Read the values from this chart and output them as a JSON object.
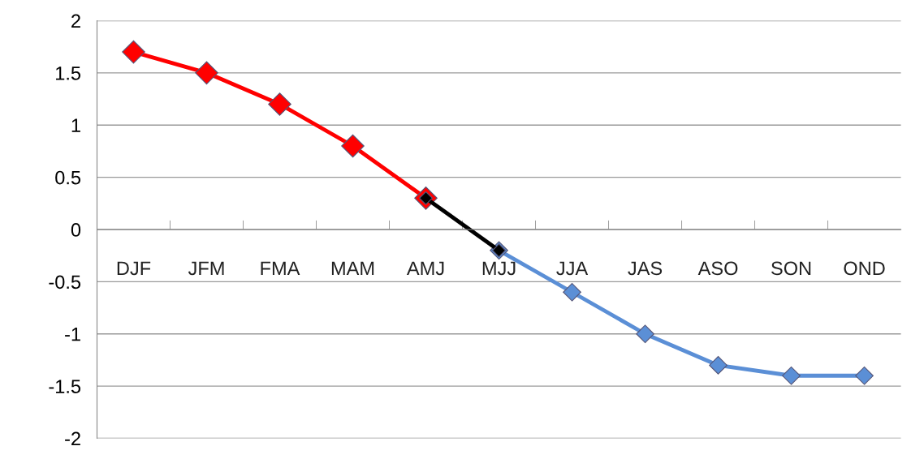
{
  "chart_data": {
    "type": "line",
    "categories": [
      "DJF",
      "JFM",
      "FMA",
      "MAM",
      "AMJ",
      "MJJ",
      "JJA",
      "JAS",
      "ASO",
      "SON",
      "OND"
    ],
    "series": [
      {
        "color": "#ff0000",
        "values": [
          1.7,
          1.5,
          1.2,
          0.8,
          0.3,
          null,
          null,
          null,
          null,
          null,
          null
        ]
      },
      {
        "color": "#5b8fd6",
        "values": [
          null,
          null,
          null,
          null,
          null,
          -0.2,
          -0.6,
          -1,
          -1.3,
          -1.4,
          -1.4
        ]
      },
      {
        "color": "#000000",
        "values": [
          null,
          null,
          null,
          null,
          0.3,
          -0.2,
          null,
          null,
          null,
          null,
          null
        ]
      }
    ],
    "ylim": [
      -2,
      2
    ],
    "yticks": [
      -2,
      -1.5,
      -1,
      -0.5,
      0,
      0.5,
      1,
      1.5,
      2
    ],
    "grid": "y",
    "marker": "diamond",
    "line_style": "solid",
    "legend": false
  }
}
